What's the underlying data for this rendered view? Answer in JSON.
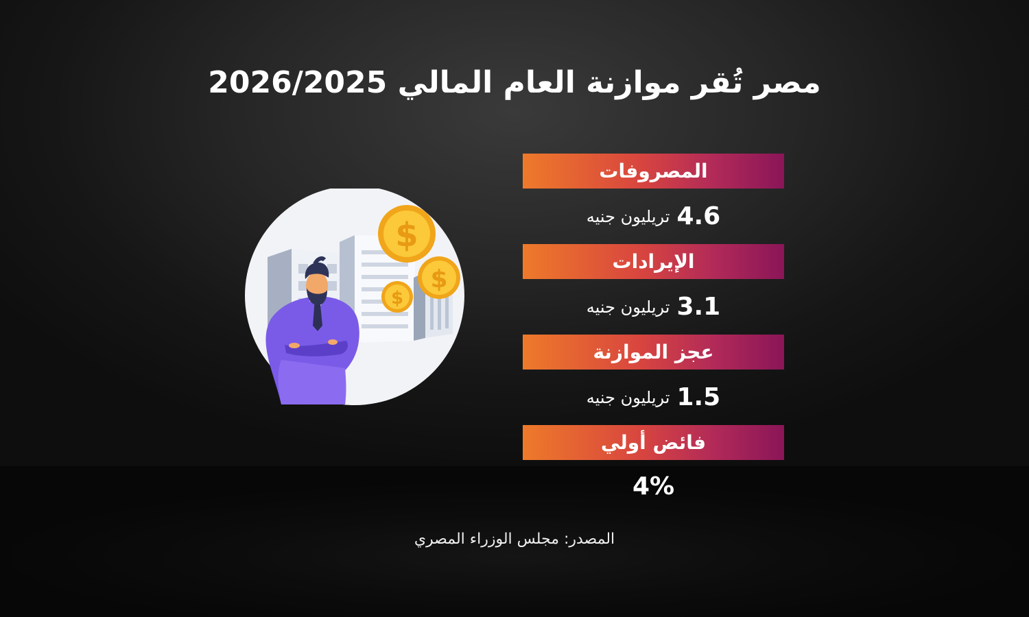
{
  "title": "مصر تُقر موازنة العام المالي 2026/2025",
  "stats": [
    {
      "label": "المصروفات",
      "value": "4.6",
      "unit": "تريليون جنيه"
    },
    {
      "label": "الإيرادات",
      "value": "3.1",
      "unit": "تريليون جنيه"
    },
    {
      "label": "عجز الموازنة",
      "value": "1.5",
      "unit": "تريليون جنيه"
    },
    {
      "label": "فائض أولي",
      "value": "4%",
      "unit": ""
    }
  ],
  "source": "المصدر: مجلس الوزراء المصري",
  "colors": {
    "gradient_start": "#ee7a2a",
    "gradient_end": "#8a1558",
    "background": "#1e1e1e",
    "coin": "#f7b82a"
  },
  "icons": [
    "dollar-coin-icon",
    "buildings-icon",
    "businessman-icon"
  ]
}
